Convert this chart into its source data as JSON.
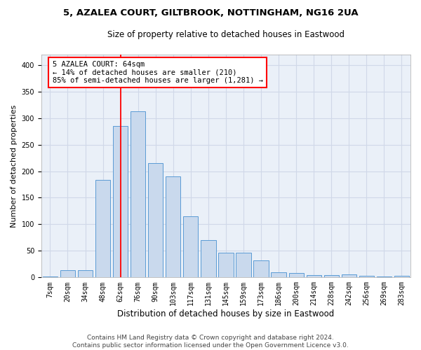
{
  "title_line1": "5, AZALEA COURT, GILTBROOK, NOTTINGHAM, NG16 2UA",
  "title_line2": "Size of property relative to detached houses in Eastwood",
  "xlabel": "Distribution of detached houses by size in Eastwood",
  "ylabel": "Number of detached properties",
  "categories": [
    "7sqm",
    "20sqm",
    "34sqm",
    "48sqm",
    "62sqm",
    "76sqm",
    "90sqm",
    "103sqm",
    "117sqm",
    "131sqm",
    "145sqm",
    "159sqm",
    "173sqm",
    "186sqm",
    "200sqm",
    "214sqm",
    "228sqm",
    "242sqm",
    "256sqm",
    "269sqm",
    "283sqm"
  ],
  "values": [
    2,
    14,
    14,
    183,
    285,
    313,
    215,
    190,
    115,
    70,
    46,
    46,
    32,
    10,
    8,
    5,
    5,
    6,
    3,
    2,
    3
  ],
  "bar_color": "#c9d9ed",
  "bar_edge_color": "#5b9bd5",
  "highlight_bar_index": 4,
  "annotation_line1": "5 AZALEA COURT: 64sqm",
  "annotation_line2": "← 14% of detached houses are smaller (210)",
  "annotation_line3": "85% of semi-detached houses are larger (1,281) →",
  "annotation_box_color": "white",
  "annotation_box_edge_color": "red",
  "red_line_color": "red",
  "ylim": [
    0,
    420
  ],
  "yticks": [
    0,
    50,
    100,
    150,
    200,
    250,
    300,
    350,
    400
  ],
  "grid_color": "#d0d8e8",
  "background_color": "white",
  "ax_background_color": "#eaf0f8",
  "footer_line1": "Contains HM Land Registry data © Crown copyright and database right 2024.",
  "footer_line2": "Contains public sector information licensed under the Open Government Licence v3.0.",
  "title_fontsize": 9.5,
  "subtitle_fontsize": 8.5,
  "xlabel_fontsize": 8.5,
  "ylabel_fontsize": 8,
  "tick_fontsize": 7,
  "annotation_fontsize": 7.5,
  "footer_fontsize": 6.5
}
